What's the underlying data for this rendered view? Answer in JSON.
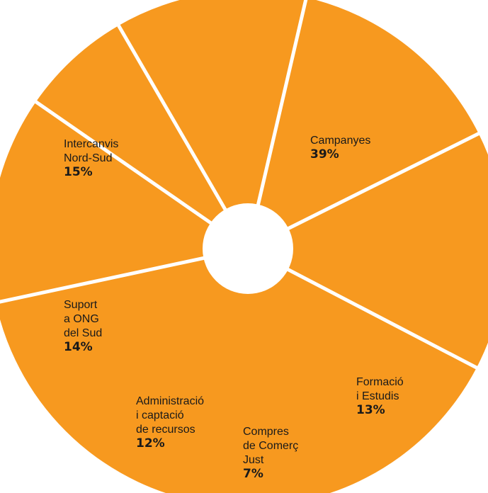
{
  "chart_data": {
    "type": "pie",
    "title": "",
    "colors": {
      "slice": "#F7991F",
      "separator": "#FFFFFF",
      "center": "#FFFFFF",
      "text": "#1A1A1A"
    },
    "slices": [
      {
        "label_lines": [
          "Campanyes"
        ],
        "percent_label": "39%",
        "value": 39
      },
      {
        "label_lines": [
          "Formació",
          "i Estudis"
        ],
        "percent_label": "13%",
        "value": 13
      },
      {
        "label_lines": [
          "Compres",
          "de Comerç",
          "Just"
        ],
        "percent_label": "7%",
        "value": 7
      },
      {
        "label_lines": [
          "Administració",
          "i captació",
          "de recursos"
        ],
        "percent_label": "12%",
        "value": 12
      },
      {
        "label_lines": [
          "Suport",
          "a ONG",
          "del Sud"
        ],
        "percent_label": "14%",
        "value": 14
      },
      {
        "label_lines": [
          "Intercanvis",
          "Nord-Sud"
        ],
        "percent_label": "15%",
        "value": 15
      }
    ]
  }
}
